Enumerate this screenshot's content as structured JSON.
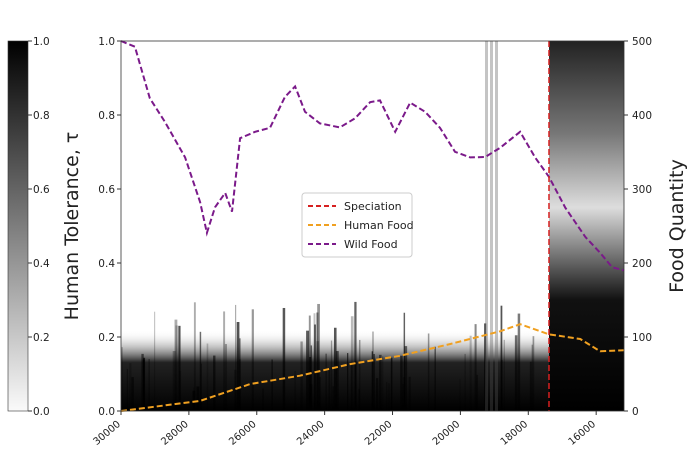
{
  "chart_data": {
    "type": "line",
    "xlabel": "",
    "ylabel_left": "Human Tolerance, τ",
    "ylabel_right": "Food Quantity",
    "xlim": [
      30000,
      15180
    ],
    "ylim_left": [
      0,
      1
    ],
    "ylim_right": [
      0,
      500
    ],
    "xticks": [
      "30000",
      "28000",
      "26000",
      "24000",
      "22000",
      "20000",
      "18000",
      "16000"
    ],
    "xtick_values": [
      30000,
      28000,
      26000,
      24000,
      22000,
      20000,
      18000,
      16000
    ],
    "yticks_left": [
      "0.0",
      "0.2",
      "0.4",
      "0.6",
      "0.8",
      "1.0"
    ],
    "yticks_right": [
      "0",
      "100",
      "200",
      "300",
      "400",
      "500"
    ],
    "colorbar": {
      "ticks": [
        "0.0",
        "0.2",
        "0.4",
        "0.6",
        "0.8",
        "1.0"
      ],
      "range": [
        0,
        1
      ]
    },
    "speciation_year": 17390,
    "legend": {
      "placement": "center",
      "entries": [
        "Speciation",
        "Human Food",
        "Wild Food"
      ]
    },
    "series": [
      {
        "name": "Wild Food",
        "color": "#7b1a8a",
        "x": [
          30000,
          29590,
          29150,
          28700,
          28110,
          27670,
          27470,
          27230,
          26930,
          26730,
          26490,
          26050,
          25610,
          25170,
          24870,
          24580,
          24140,
          23550,
          23100,
          22660,
          22370,
          21920,
          21480,
          21040,
          20600,
          20160,
          19710,
          19270,
          18830,
          18240,
          17800,
          17390,
          16910,
          16320,
          15880,
          15530,
          15180
        ],
        "y": [
          500,
          495,
          420,
          393,
          340,
          285,
          238,
          278,
          292,
          272,
          366,
          380,
          380,
          427,
          436,
          407,
          386,
          386,
          393,
          420,
          417,
          380,
          414,
          407,
          380,
          353,
          340,
          346,
          353,
          380,
          340,
          319,
          272,
          238,
          211,
          197,
          190
        ]
      },
      {
        "name": "Human Food",
        "color": "#f0a020",
        "x": [
          30000,
          27670,
          26200,
          24730,
          23250,
          21780,
          20310,
          18830,
          18240,
          17390,
          16470,
          15880,
          15180
        ],
        "y": [
          0,
          15,
          35,
          49,
          62,
          76,
          89,
          109,
          116,
          105,
          96,
          82,
          82
        ]
      },
      {
        "name": "Speciation",
        "color": "#d62020"
      }
    ]
  }
}
